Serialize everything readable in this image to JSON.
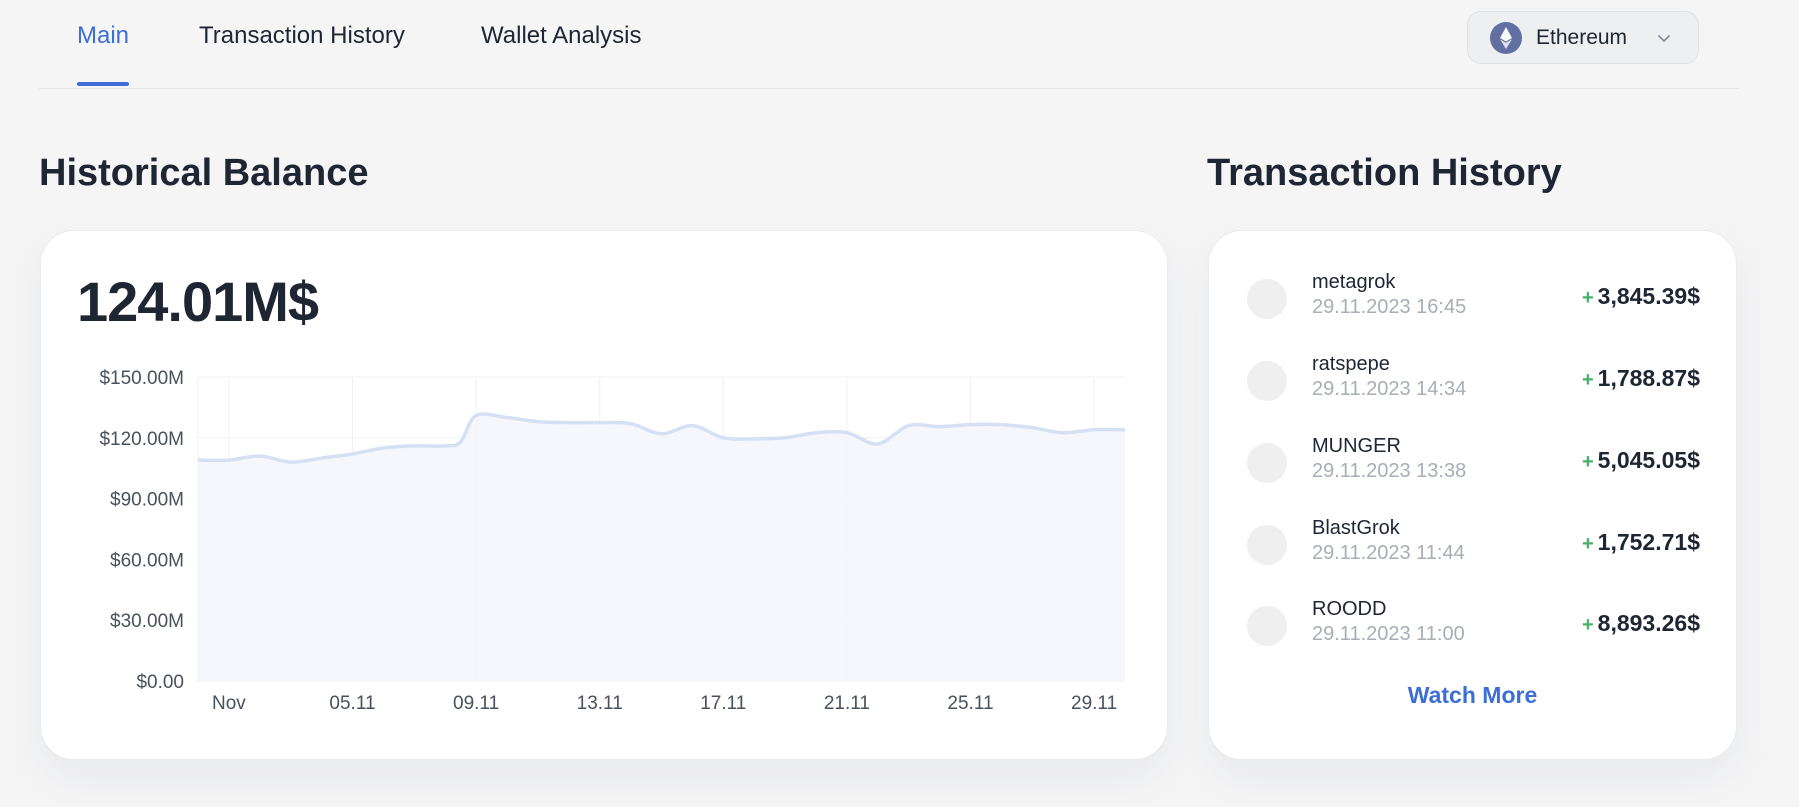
{
  "nav": {
    "tabs": [
      {
        "label": "Main",
        "active": true
      },
      {
        "label": "Transaction History",
        "active": false
      },
      {
        "label": "Wallet Analysis",
        "active": false
      }
    ],
    "network": {
      "label": "Ethereum",
      "icon": "ethereum-icon"
    }
  },
  "balance": {
    "heading": "Historical Balance",
    "total": "124.01M$"
  },
  "transactions": {
    "heading": "Transaction History",
    "items": [
      {
        "name": "metagrok",
        "date": "29.11.2023 16:45",
        "sign": "+",
        "amount": "3,845.39$"
      },
      {
        "name": "ratspepe",
        "date": "29.11.2023 14:34",
        "sign": "+",
        "amount": "1,788.87$"
      },
      {
        "name": "MUNGER",
        "date": "29.11.2023 13:38",
        "sign": "+",
        "amount": "5,045.05$"
      },
      {
        "name": "BlastGrok",
        "date": "29.11.2023 11:44",
        "sign": "+",
        "amount": "1,752.71$"
      },
      {
        "name": "ROODD",
        "date": "29.11.2023 11:00",
        "sign": "+",
        "amount": "8,893.26$"
      }
    ],
    "watch_more": "Watch More"
  },
  "colors": {
    "accent": "#3b6fd6",
    "positive": "#48b06a",
    "line": "#d6e0f5",
    "area": "#f4f6fc"
  },
  "chart_data": {
    "type": "area",
    "title": "",
    "xlabel": "",
    "ylabel": "",
    "ylim": [
      0,
      150
    ],
    "unit": "M",
    "y_ticks": [
      "$0.00",
      "$30.00M",
      "$60.00M",
      "$90.00M",
      "$120.00M",
      "$150.00M"
    ],
    "y_tick_values": [
      0,
      30,
      60,
      90,
      120,
      150
    ],
    "x_ticks": [
      "Nov",
      "05.11",
      "09.11",
      "13.11",
      "17.11",
      "21.11",
      "25.11",
      "29.11"
    ],
    "x_tick_days": [
      1,
      5,
      9,
      13,
      17,
      21,
      25,
      29
    ],
    "x_range": [
      0,
      30
    ],
    "grid": true,
    "legend": "none",
    "series": [
      {
        "x": [
          0,
          1,
          2,
          3,
          4,
          5,
          6,
          7,
          8,
          8.5,
          9,
          10,
          11,
          12,
          13,
          14,
          15,
          16,
          17,
          18,
          19,
          20,
          21,
          22,
          23,
          24,
          25,
          26,
          27,
          28,
          29,
          30
        ],
        "values": [
          109,
          109,
          111,
          108,
          110,
          112,
          115,
          116,
          116,
          118,
          131,
          130,
          128,
          127.5,
          127.5,
          127,
          122,
          126,
          120,
          119.5,
          120,
          122.5,
          122.5,
          117,
          126,
          125.5,
          126.5,
          126.5,
          125,
          122.5,
          124,
          124
        ]
      }
    ]
  }
}
